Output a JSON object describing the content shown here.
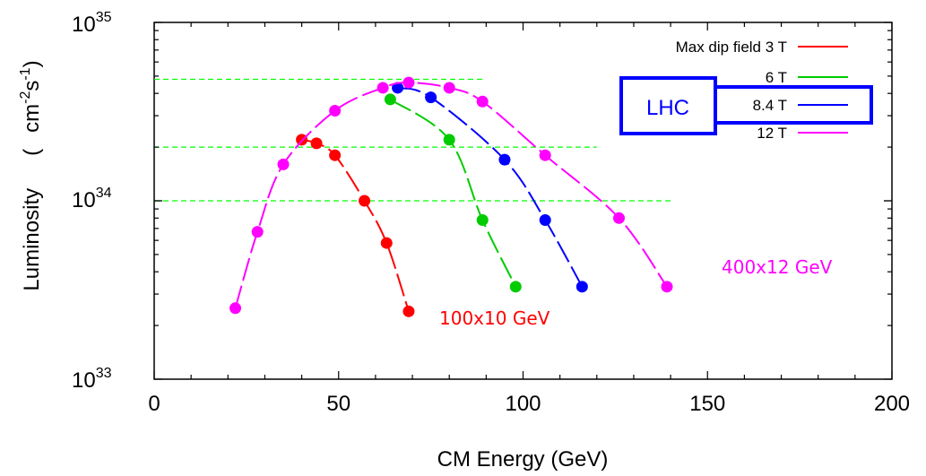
{
  "chart_data": {
    "type": "line",
    "xlabel": "CM Energy (GeV)",
    "ylabel_main": "Luminosity",
    "ylabel_paren": "(",
    "ylabel_unit_cm": "cm",
    "ylabel_unit_cm_exp": "-2",
    "ylabel_unit_s": "s",
    "ylabel_unit_s_exp": "-1",
    "ylabel_close": ")",
    "xlim": [
      0,
      200
    ],
    "ylim": [
      1e+33,
      1e+35
    ],
    "yscale": "log",
    "x_ticks": [
      0,
      50,
      100,
      150,
      200
    ],
    "x_tick_labels": [
      "0",
      "50",
      "100",
      "150",
      "200"
    ],
    "y_ticks": [
      {
        "value": 1e+33,
        "base": "10",
        "exp": "33"
      },
      {
        "value": 1e+34,
        "base": "10",
        "exp": "34"
      },
      {
        "value": 1e+35,
        "base": "10",
        "exp": "35"
      }
    ],
    "legend_position": "top-right",
    "series": [
      {
        "name": "Max dip field 3 T",
        "color": "#ff0000",
        "x": [
          40,
          44,
          49,
          57,
          63,
          69
        ],
        "y": [
          2.2e+34,
          2.1e+34,
          1.8e+34,
          1e+34,
          5.8e+33,
          2.4e+33
        ]
      },
      {
        "name": "6 T",
        "color": "#00cc00",
        "x": [
          64,
          80,
          89,
          98
        ],
        "y": [
          3.7e+34,
          2.2e+34,
          7.8e+33,
          3.3e+33
        ]
      },
      {
        "name": "8.4 T",
        "color": "#0000ff",
        "x": [
          66,
          75,
          95,
          106,
          116
        ],
        "y": [
          4.3e+34,
          3.8e+34,
          1.7e+34,
          7.8e+33,
          3.3e+33
        ]
      },
      {
        "name": "12 T",
        "color": "#ff00ff",
        "x": [
          22,
          28,
          35,
          49,
          62,
          69,
          80,
          89,
          106,
          126,
          139
        ],
        "y": [
          2.5e+33,
          6.7e+33,
          1.6e+34,
          3.2e+34,
          4.3e+34,
          4.6e+34,
          4.3e+34,
          3.6e+34,
          1.8e+34,
          8e+33,
          3.3e+33
        ]
      }
    ],
    "reference_lines": [
      {
        "y": 4.8e+34,
        "x_end": 89,
        "color": "#00ff00"
      },
      {
        "y": 2e+34,
        "x_end": 120,
        "color": "#00ff00"
      },
      {
        "y": 1e+34,
        "x_end": 140,
        "color": "#00ff00"
      }
    ],
    "annotations": [
      {
        "text": "100x10 GeV",
        "color": "#ff0000"
      },
      {
        "text": "400x12 GeV",
        "color": "#ff00ff"
      }
    ],
    "lhc_label": "LHC",
    "lhc_color": "#0000ff"
  }
}
